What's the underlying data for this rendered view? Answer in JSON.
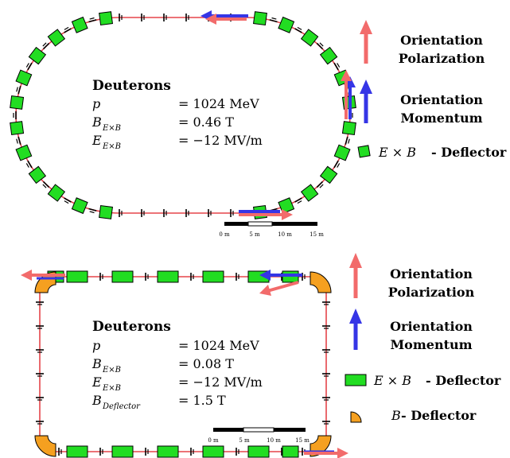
{
  "colors": {
    "beamline": "#e5454a",
    "polarization_arrow": "#f26b6b",
    "momentum_arrow": "#3535e6",
    "exb_deflector": "#22dd22",
    "b_deflector": "#f5a020",
    "quadrupole": "#000000"
  },
  "top_panel": {
    "title": "Deuterons",
    "params": [
      {
        "sym": "p",
        "sub": "",
        "val": "= 1024 MeV"
      },
      {
        "sym": "B",
        "sub": "E×B",
        "val": "= 0.46 T"
      },
      {
        "sym": "E",
        "sub": "E×B",
        "val": "= −12 MV/m"
      }
    ],
    "scale_labels": [
      "0 m",
      "5 m",
      "10 m",
      "15 m"
    ],
    "legend": {
      "pol_line1": "Orientation",
      "pol_line2": "Polarization",
      "mom_line1": "Orientation",
      "mom_line2": "Momentum",
      "exb_math": "E × B",
      "exb_text": "- Deflector"
    }
  },
  "bottom_panel": {
    "title": "Deuterons",
    "params": [
      {
        "sym": "p",
        "sub": "",
        "val": "= 1024 MeV"
      },
      {
        "sym": "B",
        "sub": "E×B",
        "val": "= 0.08 T"
      },
      {
        "sym": "E",
        "sub": "E×B",
        "val": "= −12 MV/m"
      },
      {
        "sym": "B",
        "sub": "Deflector",
        "val": "= 1.5 T"
      }
    ],
    "scale_labels": [
      "0 m",
      "5 m",
      "10 m",
      "15 m"
    ],
    "legend": {
      "pol_line1": "Orientation",
      "pol_line2": "Polarization",
      "mom_line1": "Orientation",
      "mom_line2": "Momentum",
      "exb_math": "E × B",
      "exb_text": "- Deflector",
      "b_math": "B",
      "b_text": "- Deflector"
    }
  }
}
